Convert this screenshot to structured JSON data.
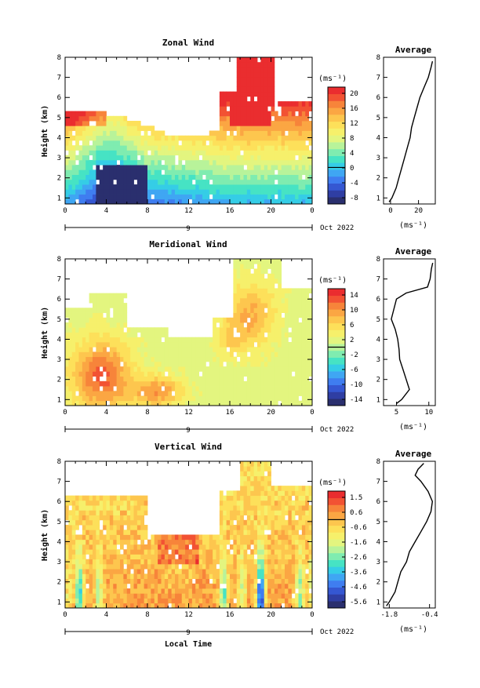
{
  "figure": {
    "xlabel": "Local Time",
    "date_label": "Oct 2022",
    "day_label": "9"
  },
  "colormap": [
    "#2a2f6e",
    "#2f3ea3",
    "#3557d2",
    "#3f7df0",
    "#3fa6f3",
    "#35cde6",
    "#46e3c4",
    "#7fecb0",
    "#b8f39a",
    "#e3f57f",
    "#f6f06b",
    "#fde05a",
    "#fdc64e",
    "#fba643",
    "#f7843a",
    "#f25233",
    "#ea2d2f"
  ],
  "chart_data": [
    {
      "type": "heatmap",
      "title": "Zonal Wind",
      "ylabel": "Height (km)",
      "x_ticks": [
        "0",
        "4",
        "8",
        "12",
        "16",
        "20",
        "0"
      ],
      "y_ticks": [
        "1",
        "2",
        "3",
        "4",
        "5",
        "6",
        "7",
        "8"
      ],
      "xlim": [
        0,
        24
      ],
      "ylim": [
        0.7,
        8
      ],
      "colorbar_unit": "(ms⁻¹)",
      "colorbar_ticks": [
        "20",
        "16",
        "12",
        "8",
        "4",
        "0",
        "-4",
        "-8"
      ],
      "colorbar_range": [
        -10,
        22
      ],
      "profile": {
        "title": "Average",
        "x_ticks": [
          "0",
          "20"
        ],
        "xlim": [
          -5,
          32
        ],
        "xlabel": "(ms⁻¹)",
        "heights": [
          0.8,
          1.0,
          1.5,
          2.0,
          2.5,
          3.0,
          3.5,
          4.0,
          4.5,
          5.0,
          5.5,
          6.0,
          6.5,
          7.0,
          7.5,
          7.8
        ],
        "values": [
          -1,
          1,
          4,
          6,
          8,
          10,
          12,
          14,
          15,
          17,
          19,
          21,
          24,
          27,
          29,
          30
        ]
      }
    },
    {
      "type": "heatmap",
      "title": "Meridional Wind",
      "ylabel": "Height (km)",
      "x_ticks": [
        "0",
        "4",
        "8",
        "12",
        "16",
        "20",
        "0"
      ],
      "y_ticks": [
        "1",
        "2",
        "3",
        "4",
        "5",
        "6",
        "7",
        "8"
      ],
      "xlim": [
        0,
        24
      ],
      "ylim": [
        0.7,
        8
      ],
      "colorbar_unit": "(ms⁻¹)",
      "colorbar_ticks": [
        "14",
        "10",
        "6",
        "2",
        "-2",
        "-6",
        "-10",
        "-14"
      ],
      "colorbar_range": [
        -16,
        16
      ],
      "profile": {
        "title": "Average",
        "x_ticks": [
          "5",
          "10"
        ],
        "xlim": [
          3,
          11
        ],
        "xlabel": "(ms⁻¹)",
        "heights": [
          0.8,
          1.0,
          1.5,
          2.0,
          2.5,
          3.0,
          3.5,
          4.0,
          4.5,
          5.0,
          5.5,
          6.0,
          6.3,
          6.6,
          7.0,
          7.5,
          7.8
        ],
        "values": [
          5.0,
          5.8,
          7.0,
          6.5,
          6.0,
          5.5,
          5.4,
          5.2,
          4.8,
          4.2,
          4.6,
          5.0,
          6.5,
          9.8,
          10.2,
          10.4,
          10.6
        ]
      }
    },
    {
      "type": "heatmap",
      "title": "Vertical Wind",
      "ylabel": "Height (km)",
      "x_ticks": [
        "0",
        "4",
        "8",
        "12",
        "16",
        "20",
        "0"
      ],
      "y_ticks": [
        "1",
        "2",
        "3",
        "4",
        "5",
        "6",
        "7",
        "8"
      ],
      "xlim": [
        0,
        24
      ],
      "ylim": [
        0.7,
        8
      ],
      "colorbar_unit": "(ms⁻¹)",
      "colorbar_ticks": [
        "1.5",
        "0.6",
        "-0.6",
        "-1.6",
        "-2.6",
        "-3.6",
        "-4.6",
        "-5.6"
      ],
      "colorbar_range": [
        -6.2,
        2.0
      ],
      "profile": {
        "title": "Average",
        "x_ticks": [
          "-1.8",
          "-0.4"
        ],
        "xlim": [
          -2.0,
          -0.2
        ],
        "xlabel": "(ms⁻¹)",
        "heights": [
          0.8,
          1.0,
          1.5,
          2.0,
          2.5,
          3.0,
          3.5,
          4.0,
          4.5,
          5.0,
          5.5,
          6.0,
          6.5,
          7.0,
          7.3,
          7.6,
          7.9
        ],
        "values": [
          -1.9,
          -1.8,
          -1.6,
          -1.5,
          -1.4,
          -1.2,
          -1.1,
          -0.9,
          -0.7,
          -0.5,
          -0.35,
          -0.3,
          -0.45,
          -0.7,
          -0.9,
          -0.8,
          -0.6
        ]
      }
    }
  ]
}
